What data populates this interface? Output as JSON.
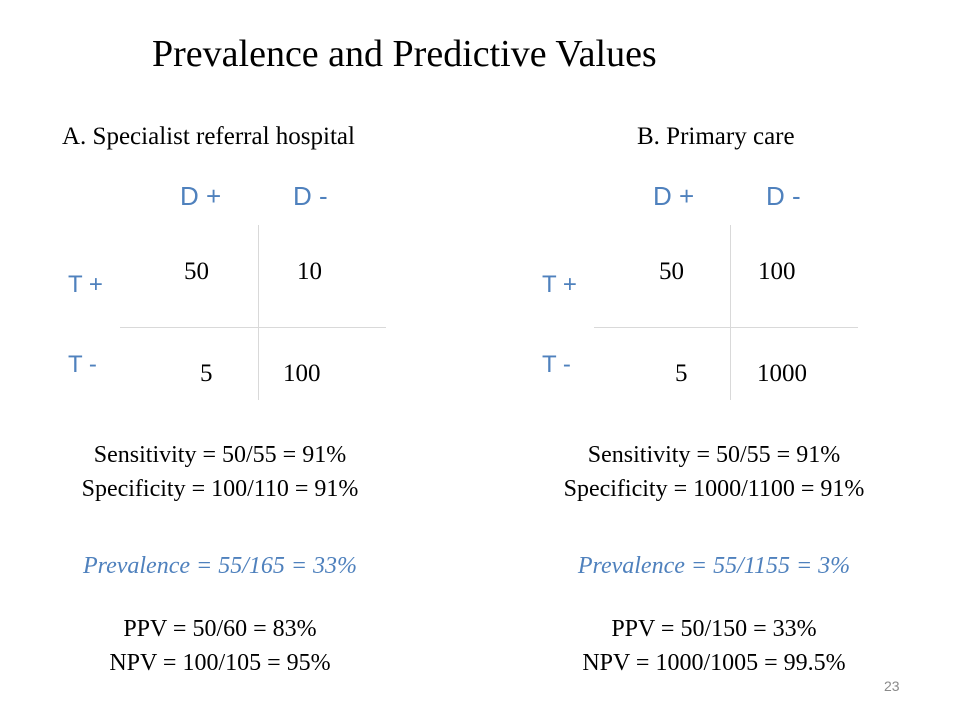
{
  "title": "Prevalence and Predictive Values",
  "panel_a": {
    "heading": "A.  Specialist referral hospital",
    "col_headers": [
      "D +",
      "D -"
    ],
    "row_headers": [
      "T +",
      "T -"
    ],
    "cells": [
      [
        "50",
        "10"
      ],
      [
        "5",
        "100"
      ]
    ],
    "sensitivity": "Sensitivity = 50/55 = 91%",
    "specificity": "Specificity = 100/110 = 91%",
    "prevalence": "Prevalence = 55/165 = 33%",
    "ppv": "PPV = 50/60 = 83%",
    "npv": "NPV = 100/105 = 95%"
  },
  "panel_b": {
    "heading": "B.  Primary care",
    "col_headers": [
      "D +",
      "D -"
    ],
    "row_headers": [
      "T +",
      "T -"
    ],
    "cells": [
      [
        "50",
        "100"
      ],
      [
        "5",
        "1000"
      ]
    ],
    "sensitivity": "Sensitivity = 50/55 = 91%",
    "specificity": "Specificity = 1000/1100 = 91%",
    "prevalence": "Prevalence = 55/1155 = 3%",
    "ppv": "PPV = 50/150 = 33%",
    "npv": "NPV = 1000/1005 = 99.5%"
  },
  "slide_number": "23",
  "colors": {
    "accent_blue": "#4f81bd",
    "text": "#000000",
    "grid_line": "#d9d9d9"
  }
}
